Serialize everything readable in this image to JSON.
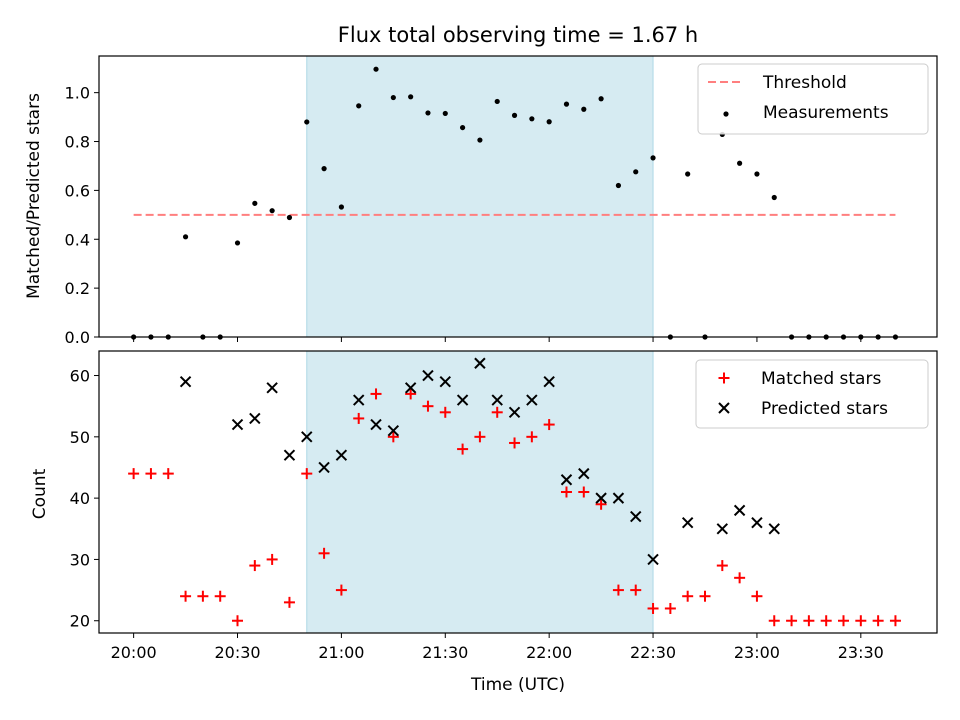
{
  "chart_data": [
    {
      "type": "scatter",
      "title": "Flux total observing time = 1.67 h",
      "ylabel": "Matched/Predicted stars",
      "xlim": [
        "19:50",
        "23:52"
      ],
      "ylim": [
        0,
        1.15
      ],
      "yticks": [
        "0.0",
        "0.2",
        "0.4",
        "0.6",
        "0.8",
        "1.0"
      ],
      "shaded_interval": [
        "20:50",
        "22:30"
      ],
      "shade_color": "#add8e6",
      "legend_position": "upper right",
      "series": [
        {
          "name": "Threshold",
          "style": "dashed-line",
          "color": "#ff7f7f",
          "x": [
            "20:00",
            "23:40"
          ],
          "y": [
            0.5,
            0.5
          ]
        },
        {
          "name": "Measurements",
          "style": "dot",
          "color": "#000000",
          "x": [
            "20:00",
            "20:05",
            "20:10",
            "20:15",
            "20:20",
            "20:25",
            "20:30",
            "20:35",
            "20:40",
            "20:45",
            "20:50",
            "20:55",
            "21:00",
            "21:05",
            "21:10",
            "21:15",
            "21:20",
            "21:25",
            "21:30",
            "21:35",
            "21:40",
            "21:45",
            "21:50",
            "21:55",
            "22:00",
            "22:05",
            "22:10",
            "22:15",
            "22:20",
            "22:25",
            "22:30",
            "22:35",
            "22:40",
            "22:45",
            "22:50",
            "22:55",
            "23:00",
            "23:05",
            "23:10",
            "23:15",
            "23:20",
            "23:25",
            "23:30",
            "23:35",
            "23:40"
          ],
          "y": [
            0,
            0,
            0,
            0.41,
            0,
            0,
            0.385,
            0.547,
            0.517,
            0.489,
            0.88,
            0.689,
            0.532,
            0.946,
            1.096,
            0.98,
            0.983,
            0.917,
            0.915,
            0.857,
            0.806,
            0.964,
            0.907,
            0.893,
            0.881,
            0.953,
            0.932,
            0.975,
            0.62,
            0.676,
            0.733,
            0,
            0.667,
            0,
            0.829,
            0.711,
            0.667,
            0.571,
            0,
            0,
            0,
            0,
            0,
            0,
            0
          ]
        }
      ]
    },
    {
      "type": "scatter",
      "xlabel": "Time (UTC)",
      "ylabel": "Count",
      "xlim": [
        "19:50",
        "23:52"
      ],
      "ylim": [
        18,
        64
      ],
      "xticks": [
        "20:00",
        "20:30",
        "21:00",
        "21:30",
        "22:00",
        "22:30",
        "23:00",
        "23:30"
      ],
      "yticks": [
        "20",
        "30",
        "40",
        "50",
        "60"
      ],
      "shaded_interval": [
        "20:50",
        "22:30"
      ],
      "legend_position": "upper right",
      "series": [
        {
          "name": "Matched stars",
          "marker": "+",
          "color": "#ff0000",
          "x": [
            "20:00",
            "20:05",
            "20:10",
            "20:15",
            "20:20",
            "20:25",
            "20:30",
            "20:35",
            "20:40",
            "20:45",
            "20:50",
            "20:55",
            "21:00",
            "21:05",
            "21:10",
            "21:15",
            "21:20",
            "21:25",
            "21:30",
            "21:35",
            "21:40",
            "21:45",
            "21:50",
            "21:55",
            "22:00",
            "22:05",
            "22:10",
            "22:15",
            "22:20",
            "22:25",
            "22:30",
            "22:35",
            "22:40",
            "22:45",
            "22:50",
            "22:55",
            "23:00",
            "23:05",
            "23:10",
            "23:15",
            "23:20",
            "23:25",
            "23:30",
            "23:35",
            "23:40"
          ],
          "y": [
            44,
            44,
            44,
            24,
            24,
            24,
            20,
            29,
            30,
            23,
            44,
            31,
            25,
            53,
            57,
            50,
            57,
            55,
            54,
            48,
            50,
            54,
            49,
            50,
            52,
            41,
            41,
            39,
            25,
            25,
            22,
            22,
            24,
            24,
            29,
            27,
            24,
            20,
            20,
            20,
            20,
            20,
            20,
            20,
            20
          ]
        },
        {
          "name": "Predicted stars",
          "marker": "x",
          "color": "#000000",
          "x": [
            "20:15",
            "20:30",
            "20:35",
            "20:40",
            "20:45",
            "20:50",
            "20:55",
            "21:00",
            "21:05",
            "21:10",
            "21:15",
            "21:20",
            "21:25",
            "21:30",
            "21:35",
            "21:40",
            "21:45",
            "21:50",
            "21:55",
            "22:00",
            "22:05",
            "22:10",
            "22:15",
            "22:20",
            "22:25",
            "22:30",
            "22:40",
            "22:50",
            "22:55",
            "23:00",
            "23:05"
          ],
          "y": [
            59,
            52,
            53,
            58,
            47,
            50,
            45,
            47,
            56,
            52,
            51,
            58,
            60,
            59,
            56,
            62,
            56,
            54,
            56,
            59,
            43,
            44,
            40,
            40,
            37,
            30,
            36,
            35,
            38,
            36,
            35
          ]
        }
      ]
    }
  ]
}
